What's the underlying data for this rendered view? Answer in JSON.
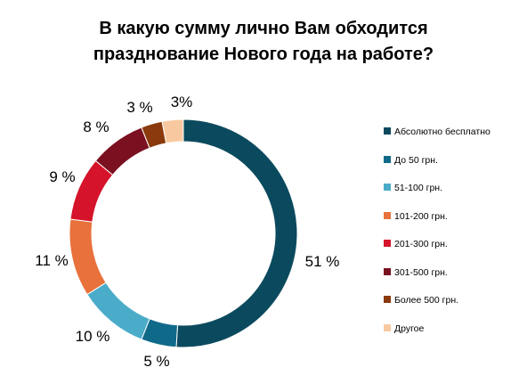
{
  "chart_data": {
    "type": "pie",
    "title": "В какую сумму лично Вам обходится празднование Нового года на работе?",
    "title_lines": [
      "В какую сумму лично Вам обходится",
      "празднование Нового года на работе?"
    ],
    "categories": [
      "Абсолютно бесплатно",
      "До 50 грн.",
      "51-100 грн.",
      "101-200 грн.",
      "201-300 грн.",
      "301-500 грн.",
      "Более 500 грн.",
      "Другое"
    ],
    "values": [
      51,
      5,
      10,
      11,
      9,
      8,
      3,
      3
    ],
    "value_labels": [
      "51 %",
      "5 %",
      "10 %",
      "11 %",
      "9 %",
      "8 %",
      "3 %",
      "3%"
    ],
    "colors": [
      "#0b4a5e",
      "#0f6a8a",
      "#4aacc9",
      "#e8713c",
      "#d5132a",
      "#7a1020",
      "#8a3a0c",
      "#f8c9a0"
    ],
    "donut": true,
    "legend_position": "right"
  }
}
